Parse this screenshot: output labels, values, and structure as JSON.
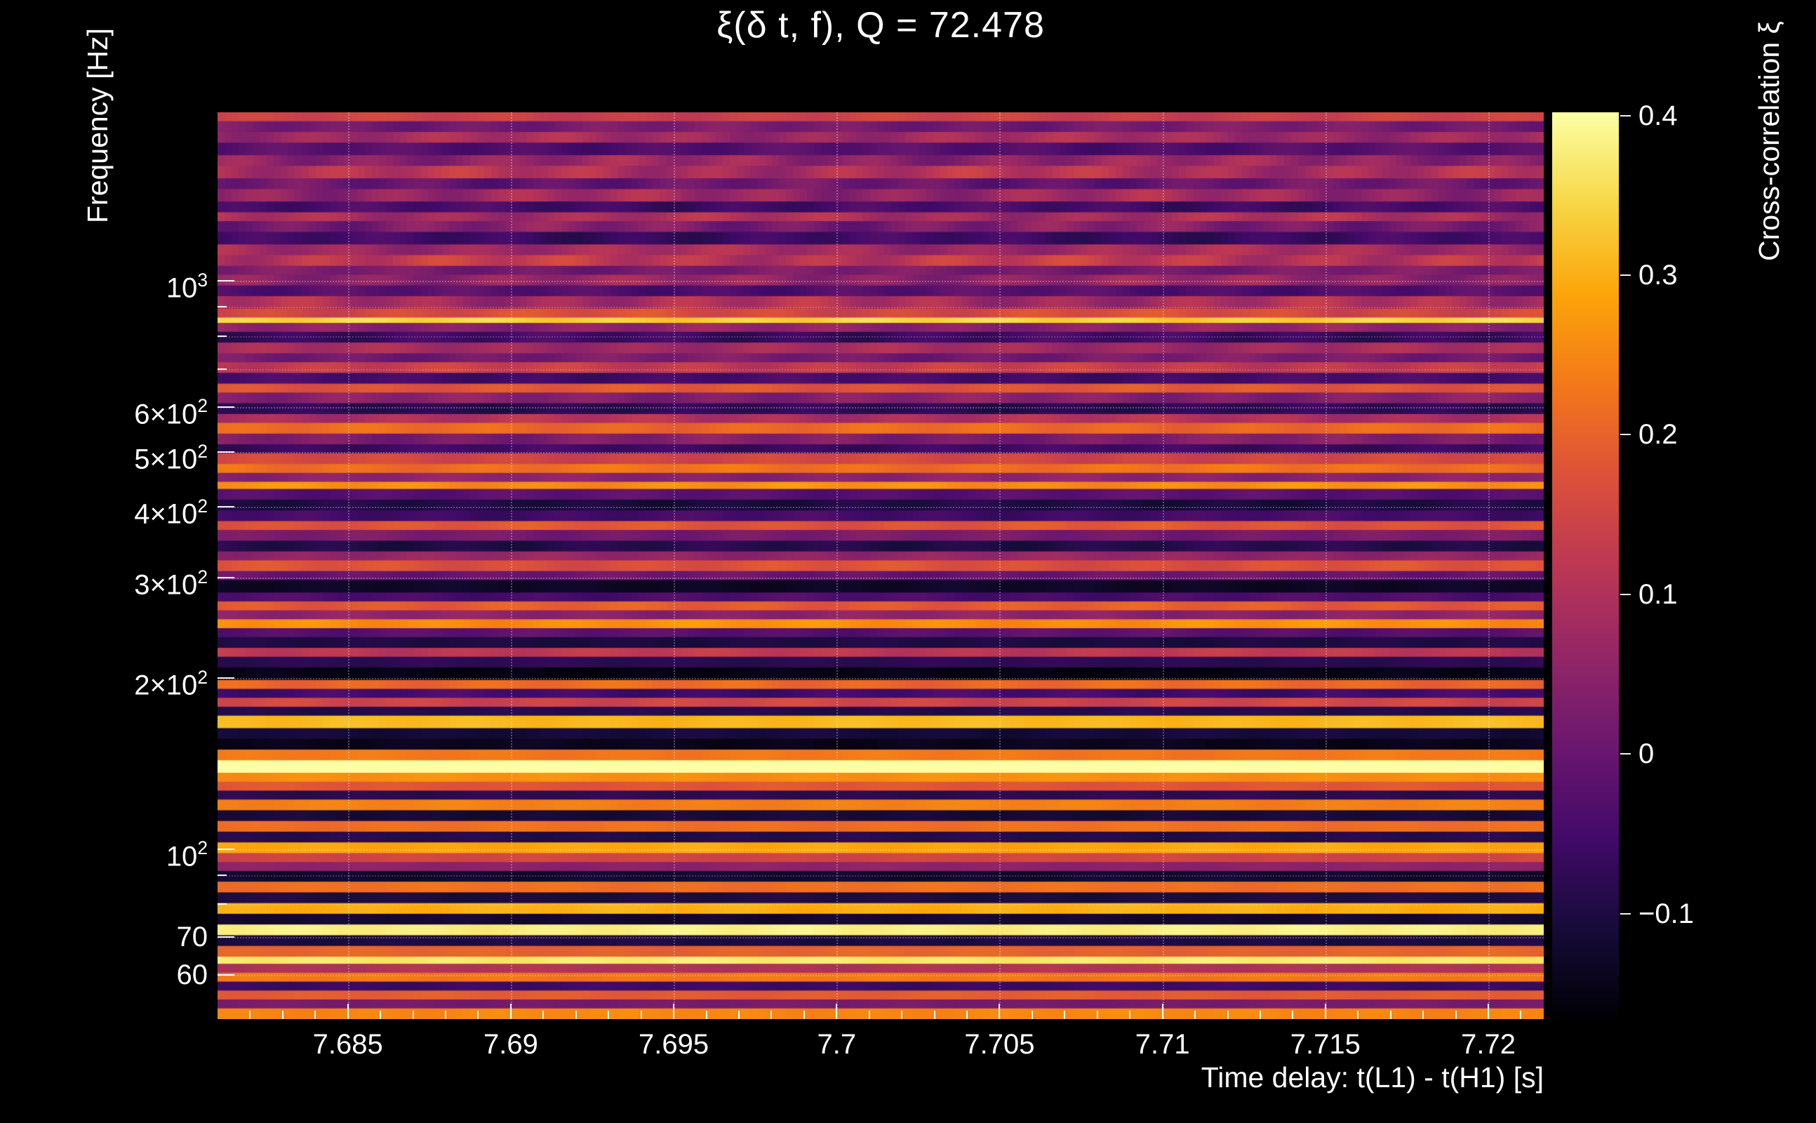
{
  "title": "ξ(δ t, f), Q = 72.478",
  "colors": {
    "background": "#000000",
    "text": "#ffffff"
  },
  "chart_data": {
    "type": "heatmap",
    "title": "ξ(δ t, f), Q = 72.478",
    "xlabel": "Time delay: t(L1) - t(H1) [s]",
    "ylabel": "Frequency [Hz]",
    "x_range": [
      7.681,
      7.7217
    ],
    "x_major_ticks": [
      7.685,
      7.69,
      7.695,
      7.7,
      7.705,
      7.71,
      7.715,
      7.72
    ],
    "x_tick_labels": [
      "7.685",
      "7.69",
      "7.695",
      "7.7",
      "7.705",
      "7.71",
      "7.715",
      "7.72"
    ],
    "x_minor_step": 0.001,
    "y_scale": "log",
    "y_range_hz": [
      50.2,
      1980
    ],
    "y_major_ticks": [
      {
        "value": 1000,
        "mantissa": "10",
        "exponent": "3"
      },
      {
        "value": 600,
        "mantissa": "6×10",
        "exponent": "2"
      },
      {
        "value": 500,
        "mantissa": "5×10",
        "exponent": "2"
      },
      {
        "value": 400,
        "mantissa": "4×10",
        "exponent": "2"
      },
      {
        "value": 300,
        "mantissa": "3×10",
        "exponent": "2"
      },
      {
        "value": 200,
        "mantissa": "2×10",
        "exponent": "2"
      },
      {
        "value": 100,
        "mantissa": "10",
        "exponent": "2"
      },
      {
        "value": 70,
        "mantissa": "70"
      },
      {
        "value": 60,
        "mantissa": "60"
      }
    ],
    "y_minor_ticks": [
      900,
      800,
      700,
      90,
      80
    ],
    "colorbar": {
      "label": "Cross-correlation ξ",
      "range": [
        -0.166,
        0.402
      ],
      "ticks": [
        0.4,
        0.3,
        0.2,
        0.1,
        0,
        -0.1
      ],
      "tick_labels": [
        "0.4",
        "0.3",
        "0.2",
        "0.1",
        "0",
        "−0.1"
      ],
      "colormap": "inferno",
      "stops": [
        {
          "t": 0.0,
          "c": "#000004"
        },
        {
          "t": 0.1,
          "c": "#160b39"
        },
        {
          "t": 0.2,
          "c": "#420a68"
        },
        {
          "t": 0.3,
          "c": "#6a176e"
        },
        {
          "t": 0.4,
          "c": "#932667"
        },
        {
          "t": 0.5,
          "c": "#bc3754"
        },
        {
          "t": 0.6,
          "c": "#dd513a"
        },
        {
          "t": 0.7,
          "c": "#f37819"
        },
        {
          "t": 0.8,
          "c": "#fca50a"
        },
        {
          "t": 0.9,
          "c": "#f6d746"
        },
        {
          "t": 1.0,
          "c": "#fcffa4"
        }
      ]
    },
    "rows_format": "[relative_height, cross_correlation_value, horizontal_variation_amplitude] from top (high frequency) to bottom (low frequency)",
    "rows": [
      [
        10,
        0.14,
        0.02
      ],
      [
        12,
        0.02,
        0.03
      ],
      [
        12,
        0.08,
        0.04
      ],
      [
        14,
        -0.03,
        0.03
      ],
      [
        12,
        0.06,
        0.05
      ],
      [
        14,
        0.1,
        0.05
      ],
      [
        12,
        0.0,
        0.04
      ],
      [
        14,
        0.07,
        0.05
      ],
      [
        12,
        -0.05,
        0.03
      ],
      [
        10,
        0.09,
        0.04
      ],
      [
        12,
        0.03,
        0.05
      ],
      [
        14,
        -0.06,
        0.03
      ],
      [
        12,
        0.08,
        0.04
      ],
      [
        12,
        0.12,
        0.05
      ],
      [
        10,
        0.02,
        0.03
      ],
      [
        12,
        0.06,
        0.04
      ],
      [
        12,
        -0.03,
        0.03
      ],
      [
        14,
        0.09,
        0.05
      ],
      [
        10,
        0.16,
        0.03
      ],
      [
        6,
        0.34,
        0.02
      ],
      [
        10,
        0.05,
        0.03
      ],
      [
        12,
        -0.06,
        0.03
      ],
      [
        12,
        0.08,
        0.03
      ],
      [
        10,
        0.02,
        0.03
      ],
      [
        12,
        0.13,
        0.03
      ],
      [
        12,
        -0.05,
        0.02
      ],
      [
        10,
        0.18,
        0.02
      ],
      [
        12,
        0.04,
        0.03
      ],
      [
        12,
        -0.08,
        0.02
      ],
      [
        10,
        0.1,
        0.03
      ],
      [
        12,
        0.21,
        0.02
      ],
      [
        12,
        0.03,
        0.03
      ],
      [
        10,
        -0.06,
        0.02
      ],
      [
        12,
        0.15,
        0.02
      ],
      [
        10,
        0.22,
        0.02
      ],
      [
        10,
        0.05,
        0.02
      ],
      [
        8,
        0.26,
        0.02
      ],
      [
        12,
        -0.02,
        0.02
      ],
      [
        12,
        -0.1,
        0.02
      ],
      [
        12,
        -0.05,
        0.02
      ],
      [
        10,
        0.18,
        0.02
      ],
      [
        12,
        0.02,
        0.02
      ],
      [
        12,
        -0.09,
        0.02
      ],
      [
        10,
        0.06,
        0.02
      ],
      [
        12,
        0.17,
        0.02
      ],
      [
        10,
        0.0,
        0.02
      ],
      [
        14,
        -0.13,
        0.01
      ],
      [
        10,
        -0.04,
        0.02
      ],
      [
        10,
        0.19,
        0.02
      ],
      [
        10,
        0.05,
        0.02
      ],
      [
        10,
        0.26,
        0.02
      ],
      [
        10,
        -0.02,
        0.02
      ],
      [
        12,
        -0.1,
        0.01
      ],
      [
        10,
        0.12,
        0.02
      ],
      [
        12,
        -0.08,
        0.01
      ],
      [
        14,
        -0.15,
        0.01
      ],
      [
        10,
        0.21,
        0.02
      ],
      [
        10,
        -0.05,
        0.02
      ],
      [
        10,
        0.15,
        0.02
      ],
      [
        10,
        -0.09,
        0.01
      ],
      [
        14,
        0.31,
        0.01
      ],
      [
        12,
        -0.11,
        0.01
      ],
      [
        12,
        -0.14,
        0.01
      ],
      [
        12,
        0.23,
        0.01
      ],
      [
        14,
        0.42,
        0.01
      ],
      [
        10,
        0.26,
        0.01
      ],
      [
        10,
        0.18,
        0.01
      ],
      [
        10,
        -0.08,
        0.01
      ],
      [
        12,
        0.24,
        0.01
      ],
      [
        12,
        -0.11,
        0.01
      ],
      [
        12,
        0.22,
        0.01
      ],
      [
        12,
        -0.09,
        0.01
      ],
      [
        12,
        0.29,
        0.01
      ],
      [
        10,
        0.15,
        0.01
      ],
      [
        10,
        0.05,
        0.01
      ],
      [
        12,
        -0.12,
        0.01
      ],
      [
        12,
        0.22,
        0.01
      ],
      [
        12,
        -0.1,
        0.01
      ],
      [
        12,
        0.3,
        0.01
      ],
      [
        12,
        -0.12,
        0.01
      ],
      [
        12,
        0.38,
        0.01
      ],
      [
        12,
        -0.1,
        0.01
      ],
      [
        12,
        0.2,
        0.01
      ],
      [
        8,
        0.37,
        0.01
      ],
      [
        10,
        0.1,
        0.01
      ],
      [
        10,
        0.23,
        0.01
      ],
      [
        10,
        -0.06,
        0.01
      ],
      [
        10,
        0.19,
        0.01
      ],
      [
        10,
        0.02,
        0.01
      ],
      [
        12,
        0.25,
        0.01
      ]
    ]
  }
}
